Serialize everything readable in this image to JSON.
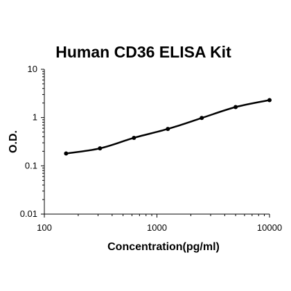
{
  "chart_data": {
    "type": "scatter",
    "title": "Human CD36 ELISA Kit",
    "xlabel": "Concentration(pg/ml)",
    "ylabel": "O.D.",
    "x_scale": "log",
    "y_scale": "log",
    "xlim": [
      100,
      10000
    ],
    "ylim": [
      0.01,
      10
    ],
    "x_ticks": [
      "100",
      "1000",
      "10000"
    ],
    "y_ticks": [
      "10",
      "1",
      "0.1",
      "0.01"
    ],
    "grid": false,
    "legend": "none",
    "series": [
      {
        "x": [
          156,
          312,
          625,
          1250,
          2500,
          5000,
          10000
        ],
        "y": [
          0.18,
          0.23,
          0.38,
          0.58,
          0.98,
          1.65,
          2.3
        ]
      }
    ],
    "colors": {
      "points": "#000000",
      "curve": "#000000",
      "axis": "#000000"
    }
  }
}
